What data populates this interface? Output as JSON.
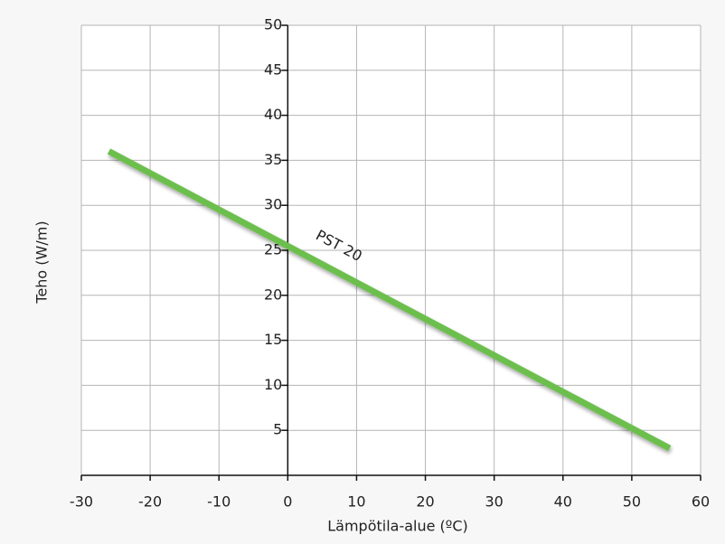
{
  "chart_data": {
    "type": "line",
    "xlabel": "Lämpötila-alue (ºC)",
    "ylabel": "Teho (W/m)",
    "series": [
      {
        "name": "PST 20",
        "color": "#6cbf4e",
        "x": [
          -26,
          55.5
        ],
        "values": [
          36,
          3
        ]
      }
    ],
    "xlim": [
      -30,
      60
    ],
    "xticks": [
      -30,
      -20,
      -10,
      0,
      10,
      20,
      30,
      40,
      50,
      60
    ],
    "ylim": [
      0,
      50
    ],
    "yticks": [
      5,
      10,
      15,
      20,
      25,
      30,
      35,
      40,
      45,
      50
    ],
    "grid": true
  }
}
